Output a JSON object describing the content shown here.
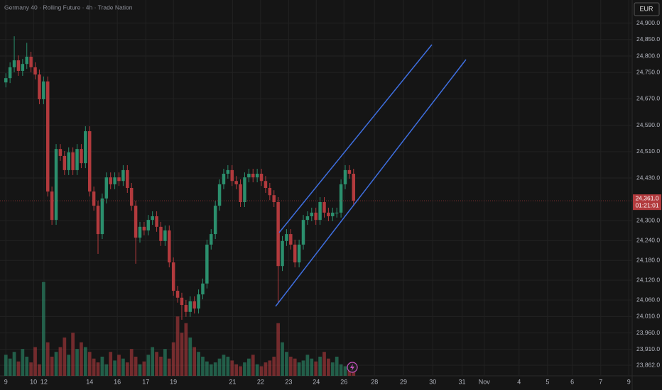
{
  "chart_data": {
    "type": "candlestick",
    "title": "Germany 40 · Rolling Future · 4h · Trade Nation",
    "currency": "EUR",
    "countdown": "01:21:01",
    "last_price": {
      "value": 24361,
      "label": "24,361.0"
    },
    "up_color": "#2b8f6d",
    "down_color": "#b23a3d",
    "grid": true,
    "xlim": [
      -1.4,
      149.5
    ],
    "xticks": [
      {
        "value": 0,
        "label": "9"
      },
      {
        "value": 6.6,
        "label": "10"
      },
      {
        "value": 9.1,
        "label": "12"
      },
      {
        "value": 20,
        "label": "14"
      },
      {
        "value": 26.6,
        "label": "16"
      },
      {
        "value": 33.4,
        "label": "17"
      },
      {
        "value": 40,
        "label": "19"
      },
      {
        "value": 54.1,
        "label": "21"
      },
      {
        "value": 60.8,
        "label": "22"
      },
      {
        "value": 67.5,
        "label": "23"
      },
      {
        "value": 74.1,
        "label": "24"
      },
      {
        "value": 80.7,
        "label": "26"
      },
      {
        "value": 88,
        "label": "28"
      },
      {
        "value": 94.9,
        "label": "29"
      },
      {
        "value": 101.9,
        "label": "30"
      },
      {
        "value": 108.9,
        "label": "31"
      },
      {
        "value": 114.2,
        "label": "Nov"
      },
      {
        "value": 122.5,
        "label": "4"
      },
      {
        "value": 129.3,
        "label": "5"
      },
      {
        "value": 135.2,
        "label": "6"
      },
      {
        "value": 142,
        "label": "7"
      },
      {
        "value": 148.7,
        "label": "9"
      }
    ],
    "ylim": [
      23830,
      24970
    ],
    "yticks": [
      {
        "value": 24900,
        "label": "24,900.0"
      },
      {
        "value": 24850,
        "label": "24,850.0"
      },
      {
        "value": 24800,
        "label": "24,800.0"
      },
      {
        "value": 24750,
        "label": "24,750.0"
      },
      {
        "value": 24670,
        "label": "24,670.0"
      },
      {
        "value": 24590,
        "label": "24,590.0"
      },
      {
        "value": 24510,
        "label": "24,510.0"
      },
      {
        "value": 24430,
        "label": "24,430.0"
      },
      {
        "value": 24300,
        "label": "24,300.0"
      },
      {
        "value": 24240,
        "label": "24,240.0"
      },
      {
        "value": 24180,
        "label": "24,180.0"
      },
      {
        "value": 24120,
        "label": "24,120.0"
      },
      {
        "value": 24060,
        "label": "24,060.0"
      },
      {
        "value": 24010,
        "label": "24,010.0"
      },
      {
        "value": 23960,
        "label": "23,960.0"
      },
      {
        "value": 23910,
        "label": "23,910.0"
      },
      {
        "value": 23862,
        "label": "23,862.0"
      }
    ],
    "x": [
      0,
      1,
      2,
      3,
      4,
      5,
      6,
      7,
      8,
      9,
      10,
      11,
      12,
      13,
      14,
      15,
      16,
      17,
      18,
      19,
      20,
      21,
      22,
      23,
      24,
      25,
      26,
      27,
      28,
      29,
      30,
      31,
      32,
      33,
      34,
      35,
      36,
      37,
      38,
      39,
      40,
      41,
      42,
      43,
      44,
      45,
      46,
      47,
      48,
      49,
      50,
      51,
      52,
      53,
      54,
      55,
      56,
      57,
      58,
      59,
      60,
      61,
      62,
      63,
      64,
      65,
      66,
      67,
      68,
      69,
      70,
      71,
      72,
      73,
      74,
      75,
      76,
      77,
      78,
      79,
      80,
      81,
      82,
      83
    ],
    "open": [
      24720,
      24733,
      24766,
      24787,
      24755,
      24776,
      24798,
      24766,
      24744,
      24669,
      24723,
      24389,
      24303,
      24518,
      24497,
      24454,
      24508,
      24454,
      24518,
      24475,
      24572,
      24389,
      24346,
      24260,
      24368,
      24432,
      24411,
      24432,
      24421,
      24454,
      24400,
      24346,
      24249,
      24282,
      24271,
      24303,
      24314,
      24282,
      24239,
      24271,
      24174,
      24088,
      24067,
      24045,
      24024,
      24056,
      24034,
      24077,
      24110,
      24228,
      24260,
      24346,
      24411,
      24443,
      24454,
      24421,
      24411,
      24357,
      24432,
      24443,
      24432,
      24443,
      24421,
      24400,
      24378,
      24357,
      24163,
      24239,
      24260,
      24228,
      24174,
      24228,
      24303,
      24314,
      24325,
      24303,
      24357,
      24325,
      24314,
      24325,
      24325,
      24411,
      24454,
      24443
    ],
    "high": [
      24748,
      24781,
      24860,
      24802,
      24791,
      24840,
      24813,
      24781,
      24759,
      24738,
      24738,
      24404,
      24533,
      24533,
      24512,
      24523,
      24523,
      24533,
      24533,
      24587,
      24587,
      24404,
      24361,
      24383,
      24447,
      24447,
      24447,
      24447,
      24469,
      24469,
      24415,
      24361,
      24297,
      24297,
      24318,
      24329,
      24329,
      24297,
      24286,
      24286,
      24189,
      24103,
      24082,
      24060,
      24071,
      24071,
      24092,
      24125,
      24243,
      24275,
      24361,
      24426,
      24458,
      24469,
      24469,
      24436,
      24426,
      24447,
      24458,
      24458,
      24458,
      24458,
      24436,
      24415,
      24393,
      24372,
      24254,
      24275,
      24275,
      24243,
      24243,
      24318,
      24329,
      24340,
      24340,
      24372,
      24372,
      24340,
      24340,
      24340,
      24426,
      24469,
      24469,
      24458
    ],
    "low": [
      24705,
      24718,
      24751,
      24740,
      24740,
      24761,
      24751,
      24729,
      24654,
      24654,
      24374,
      24288,
      24288,
      24482,
      24439,
      24439,
      24439,
      24439,
      24460,
      24460,
      24374,
      24331,
      24200,
      24245,
      24353,
      24396,
      24396,
      24406,
      24406,
      24385,
      24331,
      24170,
      24234,
      24256,
      24256,
      24288,
      24267,
      24224,
      24224,
      24159,
      24073,
      24052,
      24000,
      24009,
      24009,
      24019,
      24019,
      24062,
      24095,
      24213,
      24245,
      24331,
      24396,
      24428,
      24406,
      24396,
      24342,
      24342,
      24417,
      24417,
      24417,
      24406,
      24385,
      24363,
      24342,
      24050,
      24148,
      24224,
      24213,
      24159,
      24159,
      24213,
      24288,
      24299,
      24288,
      24288,
      24310,
      24299,
      24299,
      24310,
      24310,
      24396,
      24428,
      24346
    ],
    "close": [
      24733,
      24766,
      24787,
      24755,
      24776,
      24798,
      24766,
      24744,
      24669,
      24723,
      24389,
      24303,
      24518,
      24497,
      24454,
      24508,
      24454,
      24518,
      24475,
      24572,
      24389,
      24346,
      24260,
      24368,
      24432,
      24411,
      24432,
      24421,
      24454,
      24400,
      24346,
      24249,
      24282,
      24271,
      24303,
      24314,
      24282,
      24239,
      24271,
      24174,
      24088,
      24067,
      24045,
      24024,
      24056,
      24034,
      24077,
      24110,
      24228,
      24260,
      24346,
      24411,
      24443,
      24454,
      24421,
      24411,
      24357,
      24432,
      24443,
      24432,
      24443,
      24421,
      24400,
      24378,
      24357,
      24163,
      24239,
      24260,
      24228,
      24174,
      24228,
      24303,
      24314,
      24325,
      24303,
      24357,
      24325,
      24314,
      24325,
      24325,
      24411,
      24454,
      24443,
      24361
    ],
    "volume": [
      22,
      18,
      25,
      15,
      28,
      20,
      14,
      30,
      12,
      98,
      35,
      20,
      25,
      30,
      40,
      22,
      45,
      28,
      35,
      30,
      25,
      18,
      14,
      20,
      12,
      25,
      16,
      22,
      18,
      14,
      28,
      20,
      12,
      15,
      22,
      30,
      25,
      20,
      28,
      18,
      35,
      62,
      45,
      55,
      40,
      30,
      25,
      20,
      15,
      12,
      14,
      18,
      22,
      20,
      16,
      12,
      10,
      14,
      18,
      22,
      12,
      10,
      14,
      16,
      20,
      55,
      35,
      25,
      20,
      18,
      14,
      16,
      22,
      18,
      15,
      20,
      25,
      18,
      14,
      20,
      12,
      10,
      8,
      14
    ]
  }
}
